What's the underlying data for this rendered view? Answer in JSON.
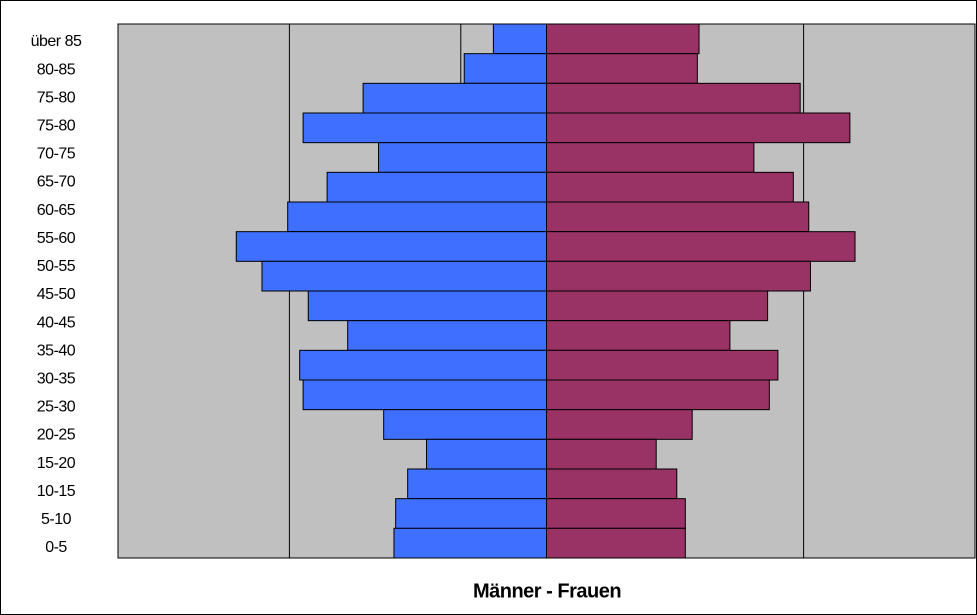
{
  "chart_data": {
    "type": "pyramid",
    "title": "Männer - Frauen",
    "categories": [
      "über 85",
      "80-85",
      "75-80",
      "75-80",
      "70-75",
      "65-70",
      "60-65",
      "55-60",
      "50-55",
      "45-50",
      "40-45",
      "35-40",
      "30-35",
      "25-30",
      "20-25",
      "15-20",
      "10-15",
      "5-10",
      "0-5"
    ],
    "series": [
      {
        "color": "#3f6fff",
        "values": [
          -31,
          -48,
          -107,
          null,
          -142,
          -98,
          -128,
          -151,
          -181,
          -166,
          -139,
          -116,
          -144,
          -142,
          -95,
          -70,
          -81,
          -88,
          -89
        ]
      },
      {
        "color": "#993366",
        "values": [
          89,
          88,
          148,
          null,
          177,
          121,
          144,
          153,
          180,
          154,
          129,
          107,
          135,
          130,
          85,
          64,
          76,
          81,
          81
        ]
      }
    ],
    "xlim": [
      -250,
      250
    ],
    "xticks": [
      -150,
      -50,
      50,
      150
    ],
    "grid": true,
    "plot_background": "#c0c0c0"
  }
}
